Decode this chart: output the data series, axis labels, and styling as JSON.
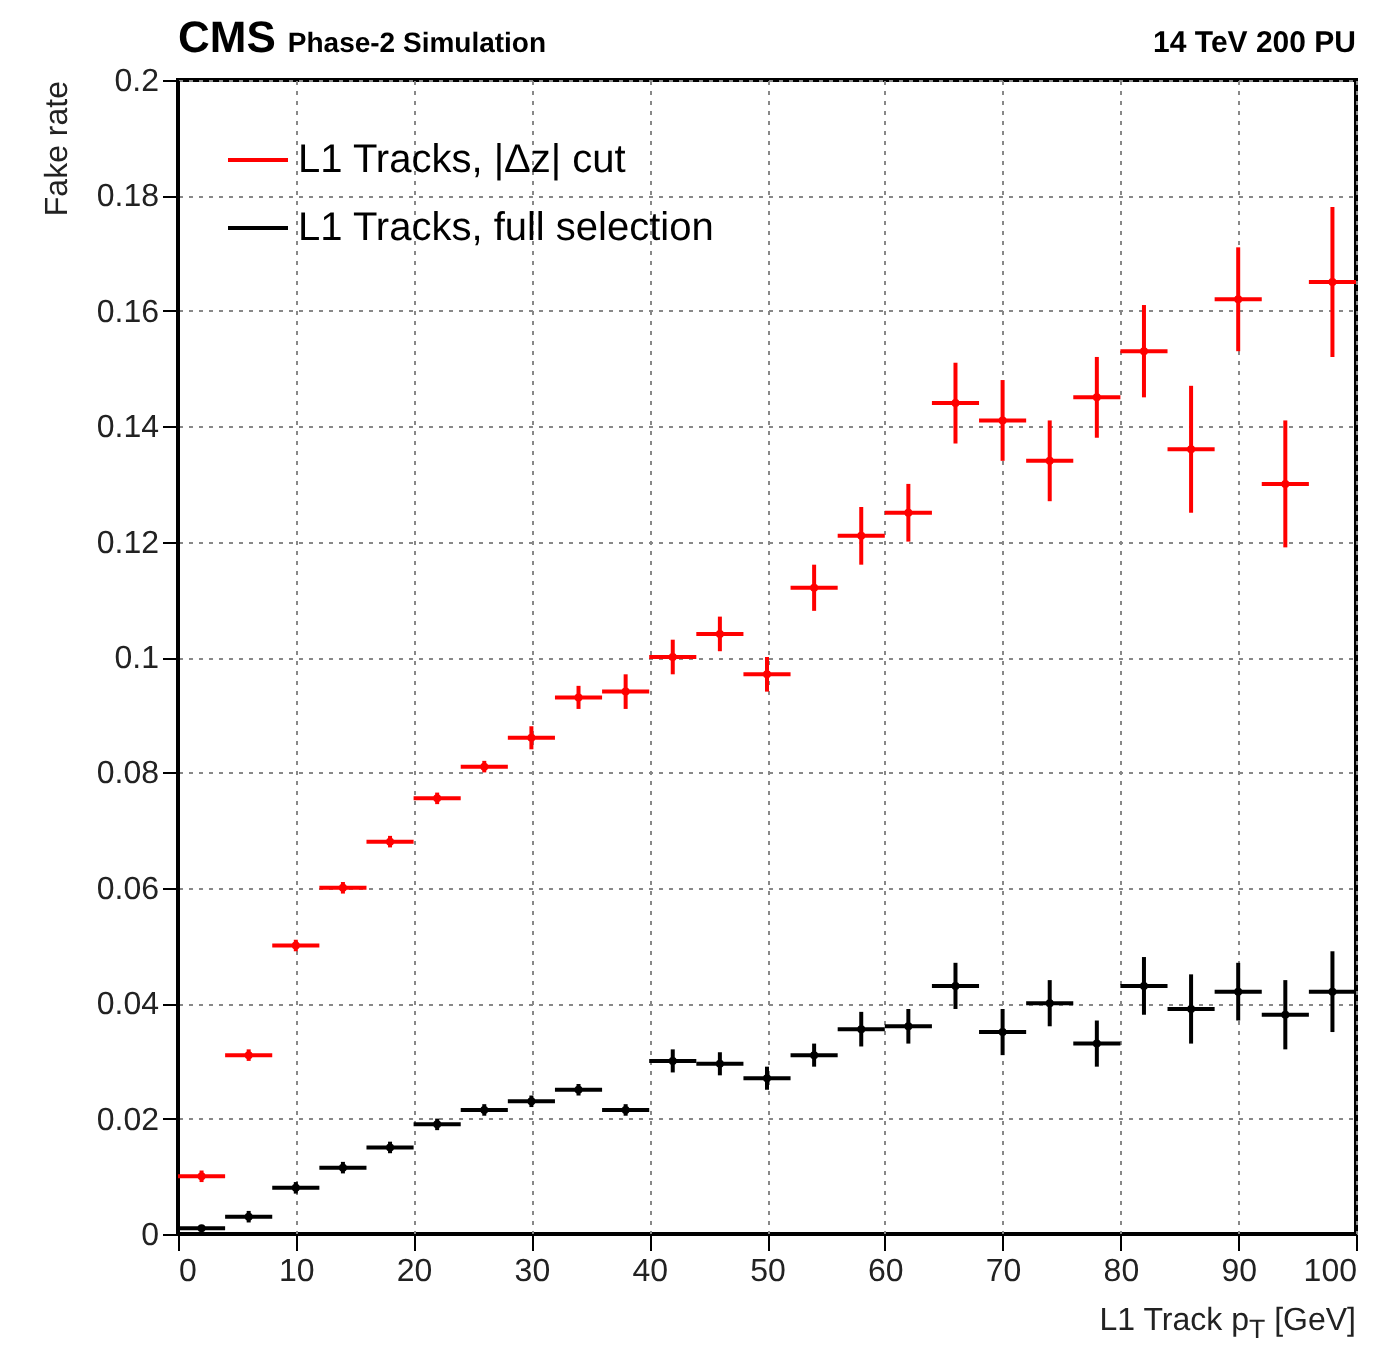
{
  "chart_data": {
    "type": "scatter",
    "title": "CMS",
    "subtitle": "Phase-2 Simulation",
    "annotations": [
      "14 TeV 200 PU"
    ],
    "xlabel": "L1 Track p$_{T}$ [GeV]",
    "ylabel": "Fake rate",
    "x": [
      2,
      6,
      10,
      14,
      18,
      22,
      26,
      30,
      34,
      38,
      42,
      46,
      50,
      54,
      58,
      62,
      66,
      70,
      74,
      78,
      82,
      86,
      90,
      94,
      98
    ],
    "xlim": [
      0,
      100
    ],
    "xticks": [
      0,
      10,
      20,
      30,
      40,
      50,
      60,
      70,
      80,
      90,
      100
    ],
    "ylim": [
      0,
      0.2
    ],
    "yticks": [
      0,
      0.02,
      0.04,
      0.06,
      0.08,
      0.1,
      0.12,
      0.14,
      0.16,
      0.18,
      0.2
    ],
    "grid": true,
    "legend": "top left",
    "marker": "circle",
    "series": [
      {
        "name": "L1 Tracks, |Δz| cut",
        "color": "#ff0000",
        "values": [
          0.01,
          0.031,
          0.05,
          0.06,
          0.068,
          0.0755,
          0.081,
          0.086,
          0.093,
          0.094,
          0.1,
          0.104,
          0.097,
          0.112,
          0.121,
          0.125,
          0.144,
          0.141,
          0.134,
          0.145,
          0.153,
          0.136,
          0.162,
          0.13,
          0.165
        ],
        "errors": [
          0.001,
          0.001,
          0.001,
          0.001,
          0.001,
          0.001,
          0.001,
          0.002,
          0.002,
          0.003,
          0.003,
          0.003,
          0.003,
          0.004,
          0.005,
          0.005,
          0.007,
          0.007,
          0.007,
          0.007,
          0.008,
          0.011,
          0.009,
          0.011,
          0.013
        ],
        "xerrors": [
          2,
          2,
          2,
          2,
          2,
          2,
          2,
          2,
          2,
          2,
          2,
          2,
          2,
          2,
          2,
          2,
          2,
          2,
          2,
          2,
          2,
          2,
          2,
          2,
          2
        ]
      },
      {
        "name": "L1 Tracks, full selection",
        "color": "#000000",
        "values": [
          0.001,
          0.003,
          0.008,
          0.0115,
          0.015,
          0.019,
          0.0215,
          0.023,
          0.025,
          0.0215,
          0.03,
          0.0295,
          0.027,
          0.031,
          0.0355,
          0.036,
          0.043,
          0.035,
          0.04,
          0.033,
          0.043,
          0.039,
          0.042,
          0.038,
          0.042
        ],
        "errors": [
          null,
          0.001,
          0.001,
          0.001,
          0.001,
          0.001,
          0.001,
          0.001,
          0.001,
          0.001,
          0.002,
          0.002,
          0.002,
          0.002,
          0.003,
          0.003,
          0.004,
          0.004,
          0.004,
          0.004,
          0.005,
          0.006,
          0.005,
          0.006,
          0.007
        ],
        "xerrors": [
          2,
          2,
          2,
          2,
          2,
          2,
          2,
          2,
          2,
          2,
          2,
          2,
          2,
          2,
          2,
          2,
          2,
          2,
          2,
          2,
          2,
          2,
          2,
          2,
          2
        ]
      }
    ]
  }
}
